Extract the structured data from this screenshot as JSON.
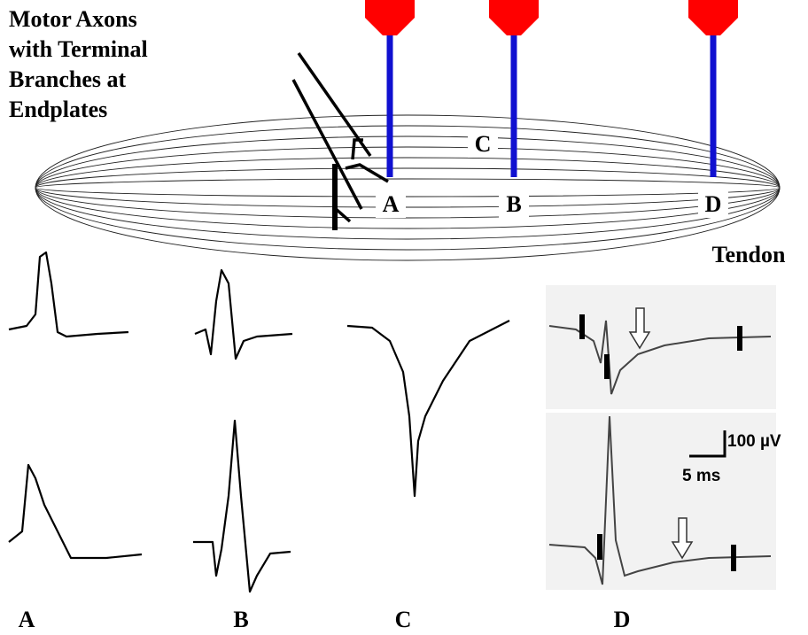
{
  "annotation": {
    "lines": [
      "Motor Axons",
      "with Terminal",
      "Branches at",
      "Endplates"
    ]
  },
  "electrode_sites": [
    "C",
    "A",
    "B",
    "D"
  ],
  "tendon_label": "Tendon",
  "scale_bar": {
    "amplitude": "100 µV",
    "time": "5 ms"
  },
  "waveform_labels": [
    "A",
    "B",
    "C",
    "D"
  ]
}
